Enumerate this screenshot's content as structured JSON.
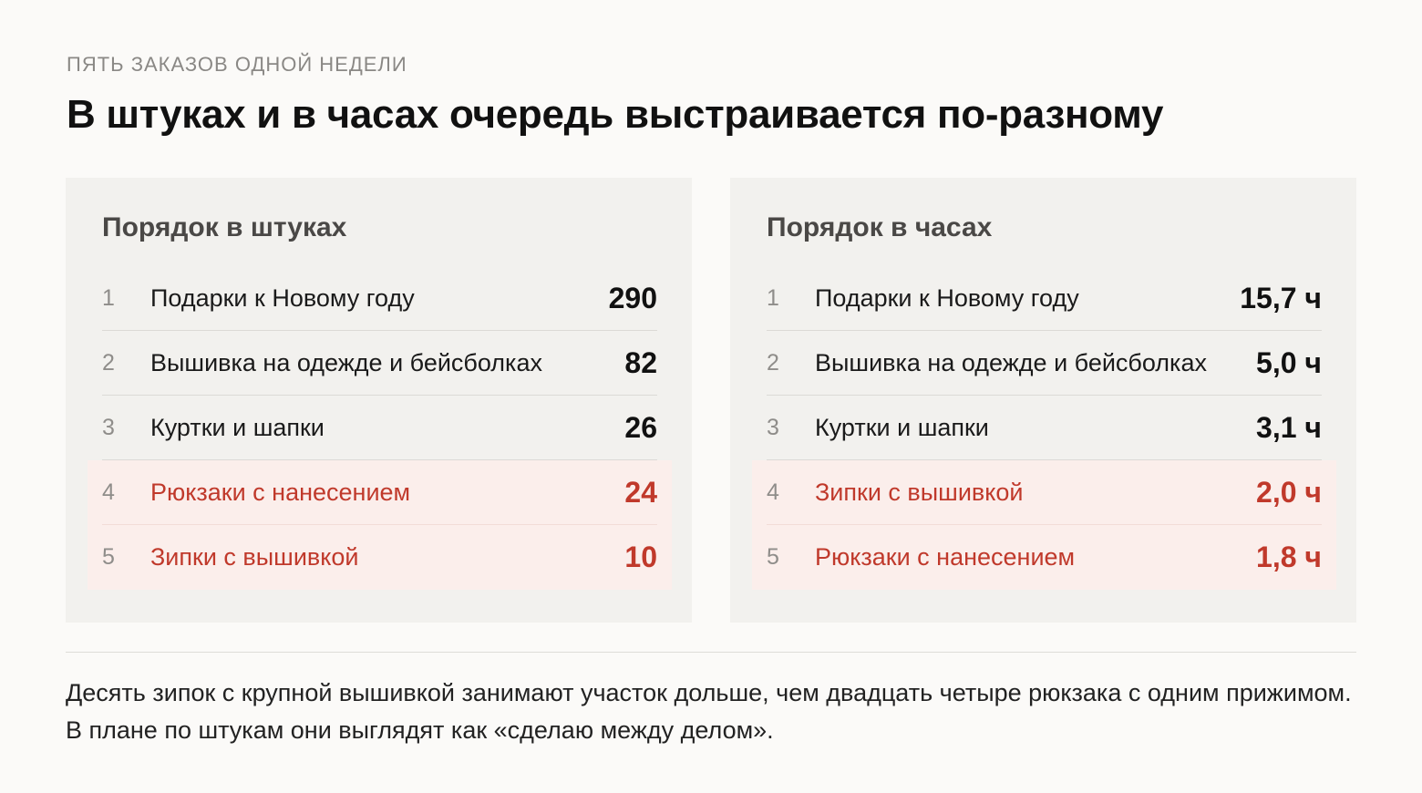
{
  "kicker": "ПЯТЬ ЗАКАЗОВ ОДНОЙ НЕДЕЛИ",
  "headline": "В штуках и в часах очередь выстраивается по-разному",
  "colors": {
    "background": "#fbfaf8",
    "panel": "#f2f1ee",
    "highlight_bg": "#fbeeeb",
    "highlight_text": "#c0392b"
  },
  "panels": [
    {
      "title": "Порядок в штуках",
      "rows": [
        {
          "rank": "1",
          "name": "Подарки к Новому году",
          "value": "290",
          "highlighted": false
        },
        {
          "rank": "2",
          "name": "Вышивка на одежде и бейсболках",
          "value": "82",
          "highlighted": false
        },
        {
          "rank": "3",
          "name": "Куртки и шапки",
          "value": "26",
          "highlighted": false
        },
        {
          "rank": "4",
          "name": "Рюкзаки с нанесением",
          "value": "24",
          "highlighted": true
        },
        {
          "rank": "5",
          "name": "Зипки с вышивкой",
          "value": "10",
          "highlighted": true
        }
      ]
    },
    {
      "title": "Порядок в часах",
      "rows": [
        {
          "rank": "1",
          "name": "Подарки к Новому году",
          "value": "15,7 ч",
          "highlighted": false
        },
        {
          "rank": "2",
          "name": "Вышивка на одежде и бейсболках",
          "value": "5,0 ч",
          "highlighted": false
        },
        {
          "rank": "3",
          "name": "Куртки и шапки",
          "value": "3,1 ч",
          "highlighted": false
        },
        {
          "rank": "4",
          "name": "Зипки с вышивкой",
          "value": "2,0 ч",
          "highlighted": true
        },
        {
          "rank": "5",
          "name": "Рюкзаки с нанесением",
          "value": "1,8 ч",
          "highlighted": true
        }
      ]
    }
  ],
  "note": "Десять зипок с крупной вышивкой занимают участок дольше, чем двадцать четыре рюкзака с одним прижимом. В плане по штукам они выглядят как «сделаю между делом»."
}
